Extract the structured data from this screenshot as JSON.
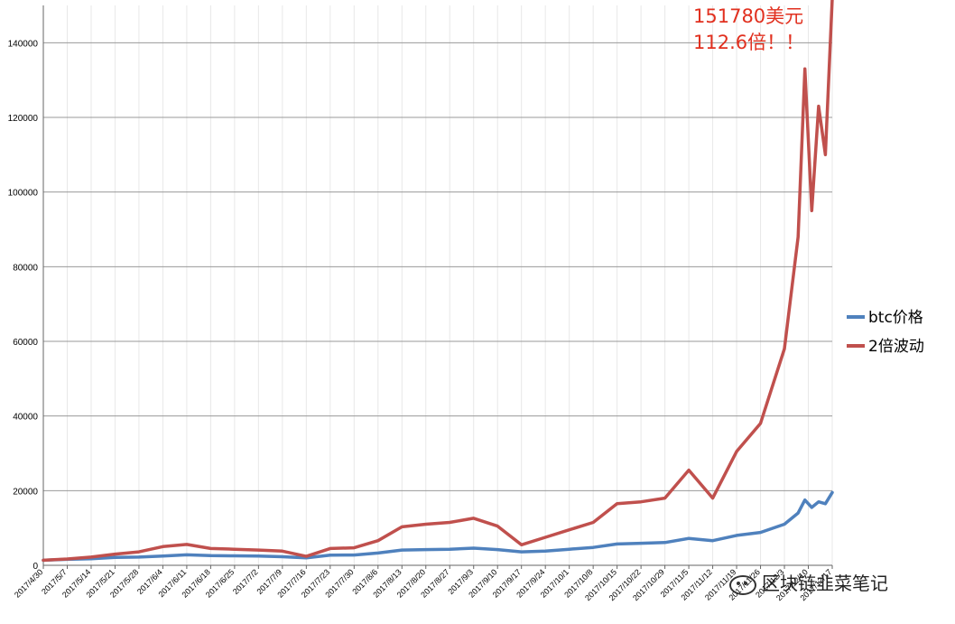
{
  "chart_data": {
    "type": "line",
    "title": "",
    "xlabel": "",
    "ylabel": "",
    "ylim": [
      0,
      150000
    ],
    "yticks": [
      0,
      20000,
      40000,
      60000,
      80000,
      100000,
      120000,
      140000
    ],
    "x_tick_labels": [
      "2017/4/30",
      "2017/5/7",
      "2017/5/14",
      "2017/5/21",
      "2017/5/28",
      "2017/6/4",
      "2017/6/11",
      "2017/6/18",
      "2017/6/25",
      "2017/7/2",
      "2017/7/9",
      "2017/7/16",
      "2017/7/23",
      "2017/7/30",
      "2017/8/6",
      "2017/8/13",
      "2017/8/20",
      "2017/8/27",
      "2017/9/3",
      "2017/9/10",
      "2017/9/17",
      "2017/9/24",
      "2017/10/1",
      "2017/10/8",
      "2017/10/15",
      "2017/10/22",
      "2017/10/29",
      "2017/11/5",
      "2017/11/12",
      "2017/11/19",
      "2017/11/26",
      "2017/12/3",
      "2017/12/10",
      "2017/12/17"
    ],
    "x": [
      "2017/4/30",
      "2017/5/7",
      "2017/5/14",
      "2017/5/21",
      "2017/5/28",
      "2017/6/4",
      "2017/6/11",
      "2017/6/18",
      "2017/6/25",
      "2017/7/2",
      "2017/7/9",
      "2017/7/16",
      "2017/7/23",
      "2017/7/30",
      "2017/8/6",
      "2017/8/13",
      "2017/8/20",
      "2017/8/27",
      "2017/9/3",
      "2017/9/10",
      "2017/9/17",
      "2017/9/24",
      "2017/10/1",
      "2017/10/8",
      "2017/10/15",
      "2017/10/22",
      "2017/10/29",
      "2017/11/5",
      "2017/11/12",
      "2017/11/19",
      "2017/11/26",
      "2017/12/3",
      "2017/12/7",
      "2017/12/9",
      "2017/12/11",
      "2017/12/13",
      "2017/12/15",
      "2017/12/17"
    ],
    "series": [
      {
        "name": "btc价格",
        "color": "#4f81bd",
        "values": [
          1350,
          1600,
          1750,
          2100,
          2200,
          2500,
          2800,
          2600,
          2550,
          2500,
          2300,
          2000,
          2700,
          2750,
          3300,
          4100,
          4200,
          4300,
          4600,
          4200,
          3600,
          3800,
          4300,
          4800,
          5700,
          5900,
          6100,
          7200,
          6600,
          8000,
          8800,
          11000,
          14000,
          17500,
          15500,
          17000,
          16500,
          19500
        ]
      },
      {
        "name": "2倍波动",
        "color": "#c0504d",
        "values": [
          1350,
          1700,
          2200,
          3000,
          3600,
          5000,
          5600,
          4500,
          4300,
          4100,
          3800,
          2400,
          4500,
          4700,
          6600,
          10300,
          11000,
          11500,
          12600,
          10500,
          5500,
          7500,
          9500,
          11500,
          16500,
          17000,
          18000,
          25500,
          18000,
          30500,
          38000,
          58000,
          88000,
          133000,
          95000,
          123000,
          110000,
          151780
        ]
      }
    ],
    "legend_position": "right",
    "grid": true,
    "annotation": {
      "line1": "151780美元",
      "line2": "112.6倍！！"
    }
  },
  "watermark": "区块链韭菜笔记"
}
